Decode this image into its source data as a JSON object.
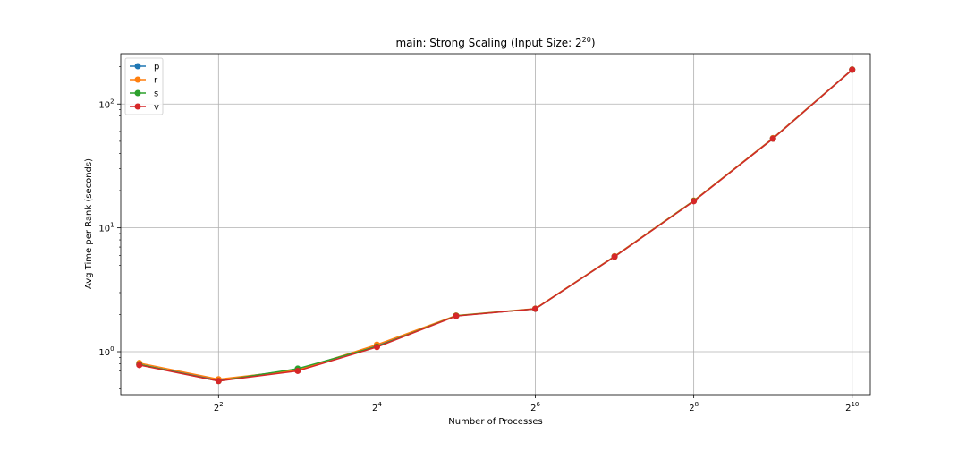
{
  "chart_data": {
    "type": "line",
    "title": "main: Strong Scaling (Input Size: 2",
    "title_exponent": "20",
    "title_suffix": ")",
    "xlabel": "Number of Processes",
    "ylabel": "Avg Time per Rank (seconds)",
    "x_scale": "log2",
    "y_scale": "log10",
    "x": [
      2,
      4,
      8,
      16,
      32,
      64,
      128,
      256,
      512,
      1024
    ],
    "xlim": [
      1.7,
      1200
    ],
    "ylim": [
      0.45,
      255
    ],
    "x_ticks": [
      {
        "value": 4,
        "base": "2",
        "exp": "2"
      },
      {
        "value": 16,
        "base": "2",
        "exp": "4"
      },
      {
        "value": 64,
        "base": "2",
        "exp": "6"
      },
      {
        "value": 256,
        "base": "2",
        "exp": "8"
      },
      {
        "value": 1024,
        "base": "2",
        "exp": "10"
      }
    ],
    "y_ticks": [
      {
        "value": 1,
        "base": "10",
        "exp": "0"
      },
      {
        "value": 10,
        "base": "10",
        "exp": "1"
      },
      {
        "value": 100,
        "base": "10",
        "exp": "2"
      }
    ],
    "grid": true,
    "legend_position": "top-left",
    "series": [
      {
        "name": "p",
        "color": "#1f77b4",
        "values": [
          0.79,
          0.59,
          0.72,
          1.12,
          1.95,
          2.22,
          5.9,
          16.5,
          53,
          190
        ]
      },
      {
        "name": "r",
        "color": "#ff7f0e",
        "values": [
          0.81,
          0.6,
          0.71,
          1.14,
          1.96,
          2.23,
          5.9,
          16.6,
          53,
          190
        ]
      },
      {
        "name": "s",
        "color": "#2ca02c",
        "values": [
          0.79,
          0.58,
          0.73,
          1.1,
          1.95,
          2.22,
          5.85,
          16.5,
          52.5,
          189
        ]
      },
      {
        "name": "v",
        "color": "#d62728",
        "values": [
          0.78,
          0.58,
          0.7,
          1.09,
          1.94,
          2.22,
          5.85,
          16.4,
          52.5,
          189
        ]
      }
    ]
  }
}
